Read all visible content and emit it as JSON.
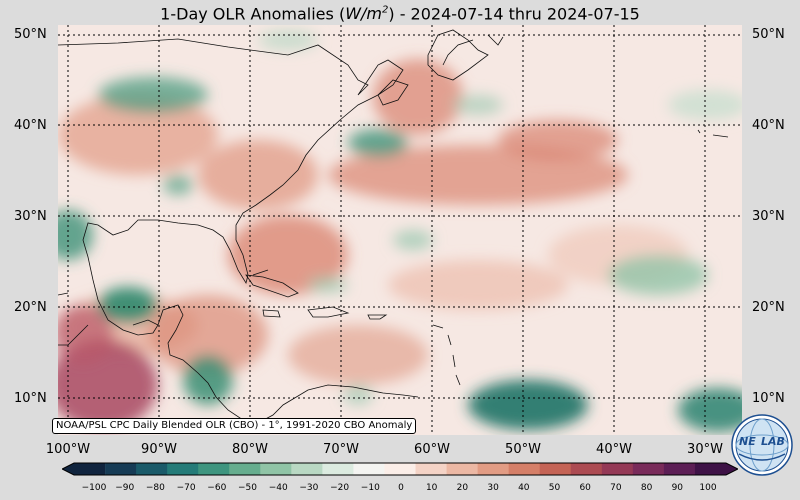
{
  "title": {
    "prefix": "1-Day OLR Anomalies (",
    "units_base": "W/m",
    "units_exp": "2",
    "suffix": ") - 2024-07-14 thru 2024-07-15"
  },
  "map": {
    "lat_labels": [
      "50°N",
      "40°N",
      "30°N",
      "20°N",
      "10°N"
    ],
    "lon_labels": [
      "100°W",
      "90°W",
      "80°W",
      "70°W",
      "60°W",
      "50°W",
      "40°W",
      "30°W"
    ],
    "credit": "NOAA/PSL CPC Daily Blended OLR (CBO) - 1°, 1991-2020 CBO Anomaly",
    "colors": {
      "ocean_base": "#f6e8e3",
      "red": "#d9826e",
      "green": "#2f8a6e",
      "purple": "#8e3561",
      "coast": "#111111"
    }
  },
  "colorbar": {
    "ticks": [
      "−100",
      "−90",
      "−80",
      "−70",
      "−60",
      "−50",
      "−40",
      "−30",
      "−20",
      "−10",
      "0",
      "10",
      "20",
      "30",
      "40",
      "50",
      "60",
      "70",
      "80",
      "90",
      "100"
    ],
    "colors": [
      "#10243e",
      "#163b55",
      "#1a5a69",
      "#247b78",
      "#3e957f",
      "#66ad8e",
      "#90c4a6",
      "#b9d8c3",
      "#dcebe0",
      "#f4f4f1",
      "#fbeee8",
      "#f4d3c6",
      "#ecb8a4",
      "#e29c84",
      "#d57f68",
      "#c46355",
      "#ac4b52",
      "#943956",
      "#792b5a",
      "#5c1e55",
      "#3e1246"
    ]
  },
  "logo": {
    "text_left": "NE",
    "text_right": "LAB"
  }
}
